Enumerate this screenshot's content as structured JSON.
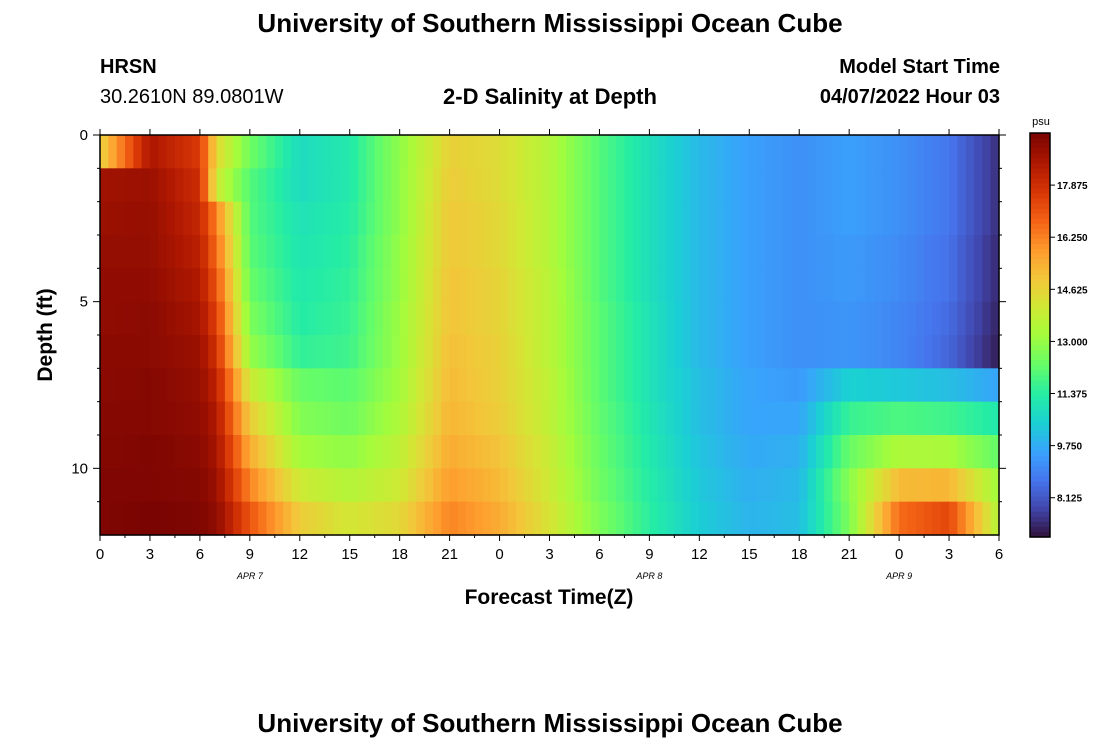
{
  "header": {
    "title": "University of Southern Mississippi Ocean Cube",
    "station": "HRSN",
    "coordinates": "30.2610N  89.0801W",
    "plot_title": "2-D Salinity at Depth",
    "model_start_label": "Model Start Time",
    "model_start_value": "04/07/2022 Hour 03"
  },
  "footer": {
    "title": "University of Southern Mississippi Ocean Cube"
  },
  "chart_data": {
    "type": "heatmap",
    "title": "2-D Salinity at Depth",
    "xlabel": "Forecast Time(Z)",
    "ylabel": "Depth (ft)",
    "x_ticks": [
      "0",
      "3",
      "6",
      "9",
      "12",
      "15",
      "18",
      "21",
      "0",
      "3",
      "6",
      "9",
      "12",
      "15",
      "18",
      "21",
      "0",
      "3",
      "6"
    ],
    "day_labels": [
      "APR 7",
      "APR 8",
      "APR 9"
    ],
    "y_ticks": [
      "0",
      "5",
      "10"
    ],
    "ylim": [
      0,
      12
    ],
    "colorbar": {
      "unit": "psu",
      "ticks": [
        "17.875",
        "16.250",
        "14.625",
        "13.000",
        "11.375",
        "9.750",
        "8.125"
      ],
      "range": [
        6.9,
        19.5
      ]
    },
    "depth_rows_ft": [
      0.5,
      1.5,
      2.5,
      3.5,
      4.5,
      5.5,
      6.5,
      7.5,
      8.5,
      9.5,
      10.5,
      11.5
    ],
    "key_hours": [
      0,
      3,
      6,
      7,
      9,
      12,
      15,
      18,
      21,
      24,
      27,
      30,
      33,
      36,
      39,
      42,
      45,
      48,
      51,
      54
    ],
    "key_values_psu": [
      [
        14.6,
        18.6,
        17.6,
        14.5,
        12.4,
        10.8,
        11.2,
        12.9,
        14.7,
        14.4,
        13.5,
        12.0,
        10.9,
        10.0,
        9.5,
        9.2,
        9.5,
        9.2,
        8.7,
        7.4
      ],
      [
        18.8,
        18.9,
        17.9,
        14.0,
        12.0,
        10.8,
        11.2,
        12.9,
        14.8,
        14.4,
        13.5,
        12.0,
        10.9,
        10.0,
        9.5,
        9.2,
        9.5,
        9.2,
        8.7,
        7.4
      ],
      [
        18.9,
        19.0,
        18.1,
        16.2,
        12.0,
        11.0,
        11.3,
        12.9,
        14.9,
        14.5,
        13.5,
        12.0,
        10.9,
        10.0,
        9.5,
        9.2,
        9.5,
        9.2,
        8.7,
        7.4
      ],
      [
        19.0,
        19.0,
        18.3,
        16.6,
        12.1,
        11.1,
        11.4,
        13.0,
        14.9,
        14.5,
        13.5,
        12.0,
        10.9,
        10.0,
        9.5,
        9.2,
        9.4,
        9.1,
        8.6,
        7.3
      ],
      [
        19.1,
        19.1,
        18.5,
        17.0,
        12.3,
        11.2,
        11.5,
        13.0,
        15.0,
        14.6,
        13.6,
        12.0,
        10.9,
        10.0,
        9.5,
        9.2,
        9.4,
        9.1,
        8.6,
        7.3
      ],
      [
        19.1,
        19.2,
        18.7,
        17.4,
        12.6,
        11.3,
        11.6,
        13.1,
        15.0,
        14.6,
        13.6,
        12.1,
        11.0,
        10.0,
        9.5,
        9.2,
        9.3,
        9.0,
        8.5,
        7.2
      ],
      [
        19.2,
        19.2,
        18.9,
        17.8,
        13.0,
        11.5,
        11.7,
        13.1,
        15.1,
        14.7,
        13.6,
        12.1,
        11.0,
        10.0,
        9.5,
        9.2,
        9.3,
        9.0,
        8.4,
        7.1
      ],
      [
        19.2,
        19.3,
        19.0,
        18.2,
        14.0,
        12.3,
        12.1,
        13.2,
        15.2,
        14.7,
        13.7,
        12.1,
        11.0,
        10.1,
        9.6,
        9.4,
        10.5,
        10.3,
        10.1,
        9.6
      ],
      [
        19.3,
        19.3,
        19.1,
        18.5,
        14.8,
        12.7,
        12.4,
        13.4,
        15.3,
        14.8,
        13.7,
        12.2,
        11.1,
        10.1,
        9.6,
        9.6,
        11.6,
        11.9,
        11.7,
        11.2
      ],
      [
        19.3,
        19.4,
        19.2,
        18.7,
        15.5,
        13.2,
        12.9,
        13.7,
        15.5,
        15.0,
        13.9,
        12.3,
        11.2,
        10.2,
        9.7,
        9.8,
        12.3,
        13.4,
        13.3,
        12.2
      ],
      [
        19.4,
        19.4,
        19.3,
        18.9,
        16.2,
        14.0,
        13.5,
        14.0,
        15.8,
        15.2,
        14.0,
        12.4,
        11.3,
        10.3,
        9.8,
        10.0,
        12.8,
        15.2,
        15.3,
        13.1
      ],
      [
        19.4,
        19.5,
        19.4,
        19.1,
        17.0,
        14.8,
        14.1,
        14.5,
        16.2,
        15.5,
        14.2,
        12.6,
        11.4,
        10.4,
        9.9,
        10.1,
        12.6,
        16.6,
        17.3,
        13.4
      ]
    ],
    "colormap_stops": [
      {
        "v": 0.0,
        "c": "#30123b"
      },
      {
        "v": 0.07,
        "c": "#4145ab"
      },
      {
        "v": 0.14,
        "c": "#4675ed"
      },
      {
        "v": 0.21,
        "c": "#39a2fc"
      },
      {
        "v": 0.28,
        "c": "#1bcfd4"
      },
      {
        "v": 0.35,
        "c": "#24eca6"
      },
      {
        "v": 0.42,
        "c": "#61fc6c"
      },
      {
        "v": 0.5,
        "c": "#a4fc3b"
      },
      {
        "v": 0.57,
        "c": "#d1e834"
      },
      {
        "v": 0.64,
        "c": "#f3c63a"
      },
      {
        "v": 0.71,
        "c": "#fe9b2d"
      },
      {
        "v": 0.78,
        "c": "#f36315"
      },
      {
        "v": 0.85,
        "c": "#d93806"
      },
      {
        "v": 0.92,
        "c": "#b11901"
      },
      {
        "v": 1.0,
        "c": "#7a0402"
      }
    ]
  }
}
